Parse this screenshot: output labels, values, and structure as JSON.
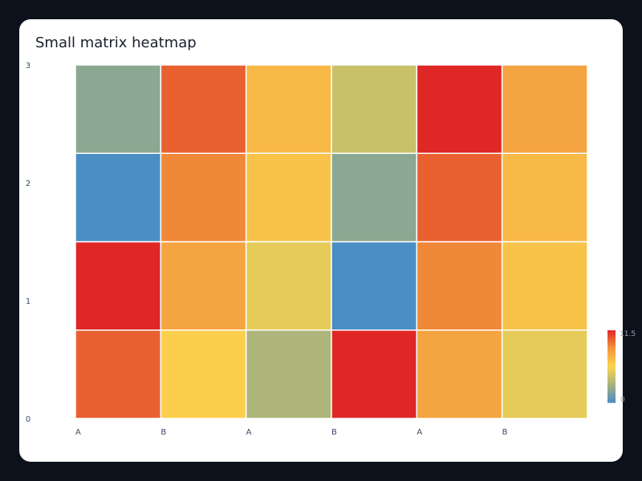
{
  "chart_data": {
    "type": "heatmap",
    "title": "Small matrix heatmap",
    "x_tick_labels": [
      "A",
      "B",
      "A",
      "B",
      "A",
      "B"
    ],
    "y_tick_labels": [
      "0",
      "1",
      "2",
      "3"
    ],
    "rows_bottom_to_top": [
      [
        10,
        6,
        3,
        11.5,
        8,
        5
      ],
      [
        11.5,
        8,
        5,
        0,
        9,
        6.5
      ],
      [
        0,
        9,
        6.5,
        2,
        10,
        7
      ],
      [
        2,
        10,
        7,
        4,
        11.5,
        8
      ]
    ],
    "colorscale": [
      "#4a8ec3",
      "#a9b47c",
      "#fcd34d",
      "#f2973c",
      "#df2726"
    ],
    "zmin": 0,
    "zmax": 11.5,
    "colorbar": {
      "min_label": "0",
      "max_label": "11.5"
    },
    "grid": false
  }
}
